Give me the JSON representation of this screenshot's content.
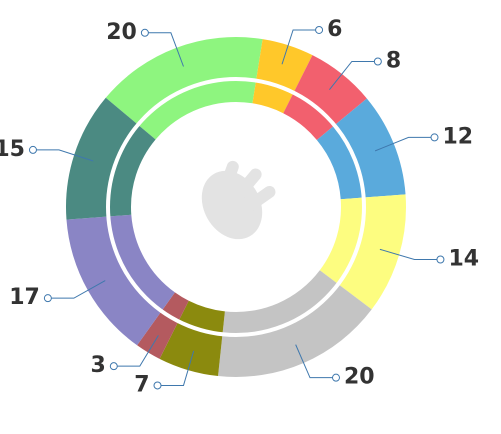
{
  "chart_data": {
    "type": "donut",
    "values": [
      20,
      6,
      8,
      12,
      14,
      20,
      7,
      3,
      17,
      15
    ],
    "colors": [
      "#8ef57f",
      "#ffc82a",
      "#f2606e",
      "#5aaadc",
      "#fdfd80",
      "#c4c4c4",
      "#8b8a0e",
      "#b45a5f",
      "#8a85c5",
      "#4b8a82"
    ]
  }
}
